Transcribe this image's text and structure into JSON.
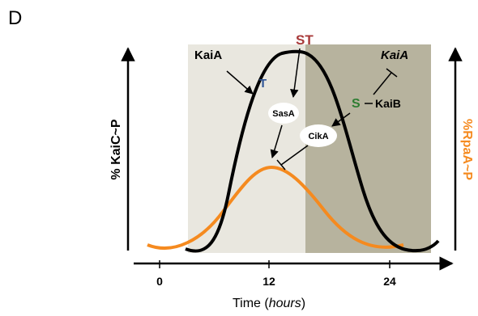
{
  "panel_label": "D",
  "axes": {
    "y_left_label": "% KaiC~P",
    "y_right_label": "%RpaA~P",
    "x_label_prefix": "Time (",
    "x_label_unit": "hours",
    "x_label_suffix": ")",
    "x_ticks": [
      "0",
      "12",
      "24"
    ]
  },
  "labels": {
    "st": "ST",
    "t": "T",
    "s": "S",
    "kaia_left": "KaiA",
    "kaia_right": "KaiA",
    "kaib": "KaiB",
    "sasa": "SasA",
    "cika": "CikA"
  },
  "colors": {
    "day_shade": "#e9e7df",
    "night_shade": "#b7b39e",
    "kaic_curve": "#000000",
    "rpaa_curve": "#f58a1f",
    "st_color": "#a83a3a",
    "t_color": "#2f5597",
    "s_color": "#2e7d32",
    "rpaa_label_color": "#f58a1f"
  },
  "series": [
    {
      "name": "KaiC~P",
      "color": "#000000"
    },
    {
      "name": "RpaA~P",
      "color": "#f58a1f"
    }
  ]
}
